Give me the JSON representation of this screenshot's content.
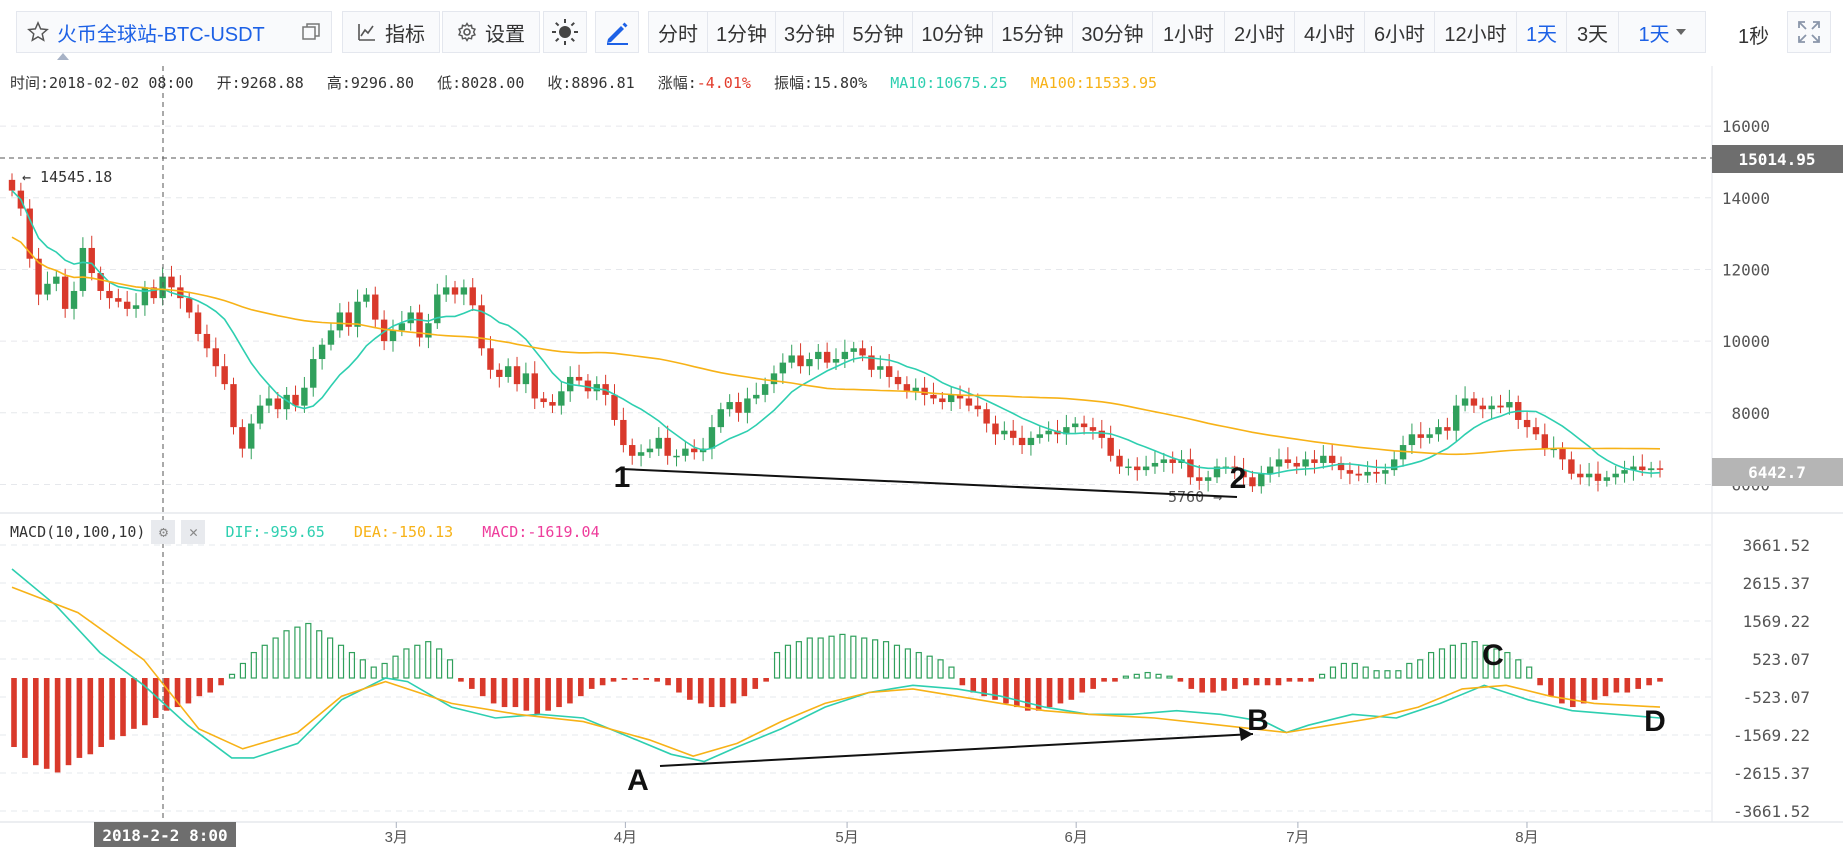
{
  "toolbar": {
    "symbol": "火币全球站-BTC-USDT",
    "indicator_label": "指标",
    "settings_label": "设置",
    "intervals": [
      "分时",
      "1分钟",
      "3分钟",
      "5分钟",
      "10分钟",
      "15分钟",
      "30分钟",
      "1小时",
      "2小时",
      "4小时",
      "6小时",
      "12小时",
      "1天",
      "3天"
    ],
    "active_interval": "1天",
    "interval_dropdown": "1天",
    "refresh": "1秒",
    "accent_color": "#1d61e6"
  },
  "info": {
    "time": "时间:2018-02-02 08:00",
    "open": "开:9268.88",
    "high": "高:9296.80",
    "low": "低:8028.00",
    "close": "收:8896.81",
    "change_label": "涨幅:",
    "change_value": "-4.01%",
    "amplitude": "振幅:15.80%",
    "ma10": "MA10:10675.25",
    "ma100": "MA100:11533.95"
  },
  "macd_info": {
    "title": "MACD(10,100,10)",
    "dif": "DIF:-959.65",
    "dea": "DEA:-150.13",
    "macd": "MACD:-1619.04"
  },
  "chart_data": [
    {
      "type": "candlestick",
      "x_labels": [
        "3月",
        "4月",
        "5月",
        "6月",
        "7月",
        "8月"
      ],
      "x_range": [
        "2018-01-08",
        "2018-08-19"
      ],
      "y_ticks": [
        6000,
        8000,
        10000,
        12000,
        14000,
        16000
      ],
      "ylim": [
        5650,
        16450
      ],
      "grid": true,
      "price_tag": "15014.95",
      "last_price": "6442.7",
      "max_label": "14545.18",
      "min_label": "5760",
      "crosshair_date": "2018-2-2 8:00",
      "series": [
        {
          "name": "MA10",
          "color": "#2ecfb0"
        },
        {
          "name": "MA100",
          "color": "#f7b217"
        }
      ],
      "closes": [
        14200,
        13700,
        12300,
        11300,
        11600,
        11800,
        10900,
        11400,
        12600,
        11900,
        11400,
        11200,
        11100,
        10900,
        11000,
        11500,
        11200,
        11800,
        11500,
        11200,
        10800,
        10200,
        9800,
        9300,
        8800,
        7600,
        7000,
        7700,
        8200,
        8400,
        8100,
        8500,
        8200,
        8700,
        9500,
        9900,
        10300,
        10800,
        10400,
        11100,
        11300,
        10600,
        10000,
        10300,
        10500,
        10800,
        10100,
        10500,
        11300,
        11500,
        11300,
        11500,
        11000,
        9800,
        9200,
        9000,
        9300,
        8800,
        9100,
        8400,
        8300,
        8200,
        8600,
        9000,
        8900,
        8600,
        8800,
        8500,
        7800,
        7100,
        6800,
        6900,
        7000,
        7300,
        6800,
        6800,
        7000,
        6900,
        7000,
        7600,
        8100,
        8300,
        8000,
        8400,
        8500,
        8800,
        9100,
        9400,
        9600,
        9300,
        9500,
        9700,
        9400,
        9500,
        9700,
        9800,
        9600,
        9200,
        9300,
        9000,
        8800,
        8600,
        8700,
        8500,
        8400,
        8300,
        8500,
        8400,
        8200,
        8100,
        7700,
        7400,
        7500,
        7300,
        7100,
        7300,
        7400,
        7500,
        7400,
        7600,
        7700,
        7600,
        7500,
        7300,
        6800,
        6500,
        6500,
        6400,
        6500,
        6600,
        6700,
        6600,
        6700,
        6200,
        6100,
        6200,
        6500,
        6500,
        6400,
        6200,
        5950,
        6300,
        6500,
        6700,
        6600,
        6500,
        6700,
        6600,
        6800,
        6600,
        6400,
        6300,
        6250,
        6350,
        6300,
        6400,
        6700,
        7100,
        7400,
        7300,
        7400,
        7600,
        7500,
        8200,
        8400,
        8200,
        8100,
        8200,
        8150,
        8300,
        7800,
        7600,
        7400,
        7000,
        7000,
        6700,
        6300,
        6200,
        6300,
        6100,
        6200,
        6300,
        6400,
        6500,
        6400,
        6450,
        6442.7
      ]
    },
    {
      "type": "bar",
      "title": "MACD(10,100,10)",
      "y_ticks": [
        -3661.52,
        -2615.37,
        -1569.22,
        -523.07,
        523.07,
        1569.22,
        2615.37,
        3661.52
      ],
      "ylim": [
        -3661.52,
        3661.52
      ],
      "series": [
        {
          "name": "DIF",
          "color": "#2ecfb0"
        },
        {
          "name": "DEA",
          "color": "#f7b217"
        },
        {
          "name": "MACD",
          "color": "#ee3d9c"
        }
      ],
      "dif_points": [
        [
          0,
          3000
        ],
        [
          4,
          2000
        ],
        [
          8,
          700
        ],
        [
          12,
          -200
        ],
        [
          16,
          -1300
        ],
        [
          20,
          -2200
        ],
        [
          22,
          -2200
        ],
        [
          26,
          -1800
        ],
        [
          30,
          -600
        ],
        [
          34,
          0
        ],
        [
          36,
          -100
        ],
        [
          40,
          -800
        ],
        [
          44,
          -1100
        ],
        [
          48,
          -1000
        ],
        [
          52,
          -1100
        ],
        [
          56,
          -1600
        ],
        [
          60,
          -2100
        ],
        [
          63,
          -2300
        ],
        [
          66,
          -1900
        ],
        [
          70,
          -1400
        ],
        [
          74,
          -800
        ],
        [
          78,
          -400
        ],
        [
          82,
          -200
        ],
        [
          86,
          -300
        ],
        [
          90,
          -500
        ],
        [
          94,
          -800
        ],
        [
          98,
          -1000
        ],
        [
          102,
          -1000
        ],
        [
          106,
          -900
        ],
        [
          110,
          -1000
        ],
        [
          114,
          -1200
        ],
        [
          116,
          -1500
        ],
        [
          118,
          -1300
        ],
        [
          122,
          -1000
        ],
        [
          126,
          -1100
        ],
        [
          130,
          -700
        ],
        [
          134,
          -200
        ],
        [
          138,
          -600
        ],
        [
          142,
          -900
        ],
        [
          146,
          -1000
        ],
        [
          150,
          -1100
        ]
      ],
      "dea_points": [
        [
          0,
          2500
        ],
        [
          6,
          1800
        ],
        [
          12,
          500
        ],
        [
          17,
          -1400
        ],
        [
          21,
          -1950
        ],
        [
          26,
          -1500
        ],
        [
          30,
          -500
        ],
        [
          34,
          -100
        ],
        [
          40,
          -700
        ],
        [
          46,
          -1000
        ],
        [
          52,
          -1200
        ],
        [
          58,
          -1700
        ],
        [
          62,
          -2150
        ],
        [
          66,
          -1800
        ],
        [
          70,
          -1200
        ],
        [
          74,
          -700
        ],
        [
          78,
          -400
        ],
        [
          82,
          -300
        ],
        [
          86,
          -500
        ],
        [
          90,
          -700
        ],
        [
          94,
          -900
        ],
        [
          98,
          -1000
        ],
        [
          104,
          -1100
        ],
        [
          110,
          -1300
        ],
        [
          116,
          -1500
        ],
        [
          120,
          -1300
        ],
        [
          124,
          -1100
        ],
        [
          128,
          -800
        ],
        [
          132,
          -300
        ],
        [
          136,
          -200
        ],
        [
          140,
          -500
        ],
        [
          144,
          -700
        ],
        [
          150,
          -800
        ]
      ],
      "macd_bars": [
        -1900,
        -2200,
        -2400,
        -2500,
        -2600,
        -2400,
        -2200,
        -2100,
        -1900,
        -1700,
        -1600,
        -1400,
        -1300,
        -1100,
        -900,
        -800,
        -700,
        -500,
        -400,
        -200,
        100,
        400,
        700,
        900,
        1100,
        1300,
        1400,
        1500,
        1300,
        1100,
        900,
        700,
        500,
        300,
        400,
        600,
        800,
        900,
        1000,
        800,
        500,
        -100,
        -300,
        -500,
        -700,
        -800,
        -800,
        -900,
        -1000,
        -900,
        -800,
        -700,
        -500,
        -300,
        -200,
        -100,
        -50,
        -50,
        -50,
        -100,
        -200,
        -400,
        -600,
        -700,
        -800,
        -800,
        -700,
        -500,
        -300,
        -100,
        700,
        900,
        1000,
        1100,
        1100,
        1150,
        1200,
        1150,
        1100,
        1050,
        1000,
        900,
        800,
        700,
        600,
        500,
        300,
        -200,
        -400,
        -500,
        -600,
        -700,
        -800,
        -900,
        -900,
        -800,
        -700,
        -600,
        -400,
        -300,
        -100,
        -100,
        50,
        100,
        150,
        100,
        50,
        -100,
        -300,
        -400,
        -400,
        -350,
        -300,
        -200,
        -200,
        -200,
        -200,
        -100,
        -100,
        -100,
        100,
        300,
        400,
        400,
        300,
        200,
        200,
        200,
        400,
        500,
        700,
        800,
        900,
        950,
        1000,
        900,
        800,
        700,
        500,
        300,
        -200,
        -500,
        -700,
        -800,
        -700,
        -600,
        -500,
        -400,
        -400,
        -300,
        -200,
        -100
      ]
    }
  ],
  "annotations": {
    "price_points": [
      "1",
      "2"
    ],
    "macd_points": [
      "A",
      "B",
      "C",
      "D"
    ]
  }
}
